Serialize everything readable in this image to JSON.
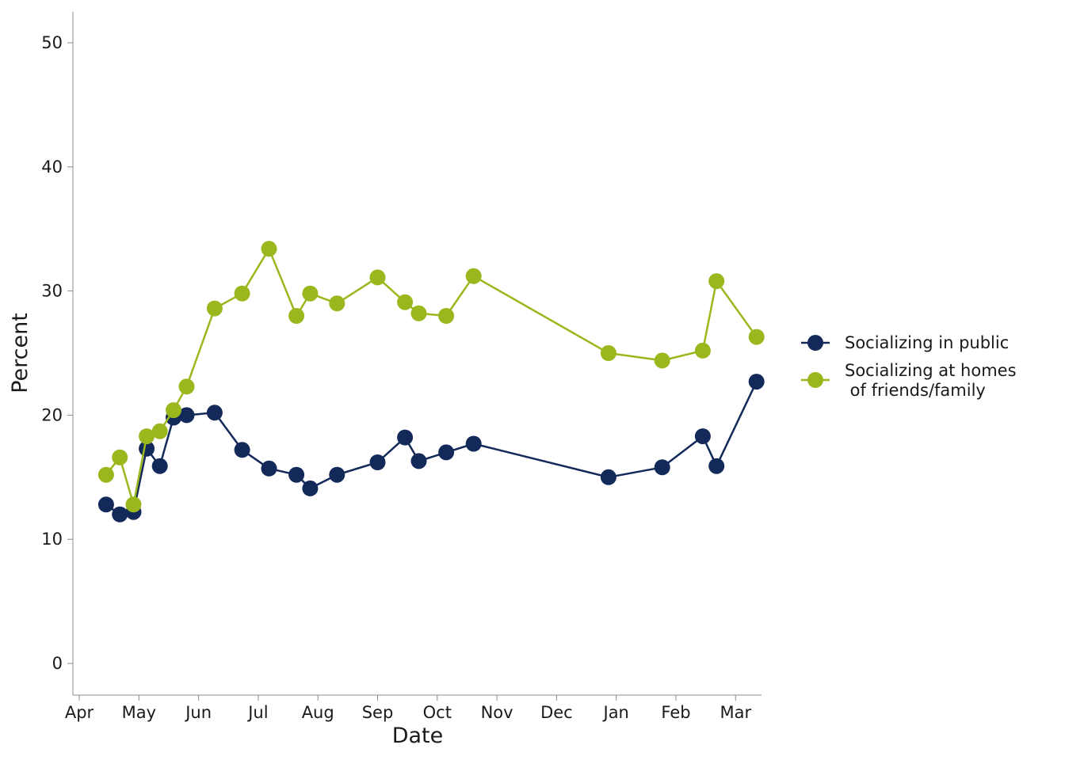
{
  "chart_data": {
    "type": "line",
    "title": "",
    "xlabel": "Date",
    "ylabel": "Percent",
    "ylim": [
      0,
      50
    ],
    "yticks": [
      0,
      10,
      20,
      30,
      40,
      50
    ],
    "xticks": [
      "Apr",
      "May",
      "Jun",
      "Jul",
      "Aug",
      "Sep",
      "Oct",
      "Nov",
      "Dec",
      "Jan",
      "Feb",
      "Mar"
    ],
    "grid": false,
    "legend_position": "right",
    "series": [
      {
        "name": "Socializing in public",
        "color": "#12295a",
        "points": [
          {
            "x": 0.45,
            "y": 12.8
          },
          {
            "x": 0.68,
            "y": 12.0
          },
          {
            "x": 0.91,
            "y": 12.2
          },
          {
            "x": 1.13,
            "y": 17.3
          },
          {
            "x": 1.35,
            "y": 15.9
          },
          {
            "x": 1.58,
            "y": 19.8
          },
          {
            "x": 1.8,
            "y": 20.0
          },
          {
            "x": 2.27,
            "y": 20.2
          },
          {
            "x": 2.73,
            "y": 17.2
          },
          {
            "x": 3.18,
            "y": 15.7
          },
          {
            "x": 3.64,
            "y": 15.2
          },
          {
            "x": 3.87,
            "y": 14.1
          },
          {
            "x": 4.32,
            "y": 15.2
          },
          {
            "x": 5.0,
            "y": 16.2
          },
          {
            "x": 5.46,
            "y": 18.2
          },
          {
            "x": 5.69,
            "y": 16.3
          },
          {
            "x": 6.15,
            "y": 17.0
          },
          {
            "x": 6.61,
            "y": 17.7
          },
          {
            "x": 8.87,
            "y": 15.0
          },
          {
            "x": 9.77,
            "y": 15.8
          },
          {
            "x": 10.45,
            "y": 18.3
          },
          {
            "x": 10.68,
            "y": 15.9
          },
          {
            "x": 11.35,
            "y": 22.7
          }
        ]
      },
      {
        "name": "Socializing at homes\n of friends/family",
        "color": "#9ab81d",
        "points": [
          {
            "x": 0.45,
            "y": 15.2
          },
          {
            "x": 0.68,
            "y": 16.6
          },
          {
            "x": 0.91,
            "y": 12.8
          },
          {
            "x": 1.13,
            "y": 18.3
          },
          {
            "x": 1.35,
            "y": 18.7
          },
          {
            "x": 1.58,
            "y": 20.4
          },
          {
            "x": 1.8,
            "y": 22.3
          },
          {
            "x": 2.27,
            "y": 28.6
          },
          {
            "x": 2.73,
            "y": 29.8
          },
          {
            "x": 3.18,
            "y": 33.4
          },
          {
            "x": 3.64,
            "y": 28.0
          },
          {
            "x": 3.87,
            "y": 29.8
          },
          {
            "x": 4.32,
            "y": 29.0
          },
          {
            "x": 5.0,
            "y": 31.1
          },
          {
            "x": 5.46,
            "y": 29.1
          },
          {
            "x": 5.69,
            "y": 28.2
          },
          {
            "x": 6.15,
            "y": 28.0
          },
          {
            "x": 6.61,
            "y": 31.2
          },
          {
            "x": 8.87,
            "y": 25.0
          },
          {
            "x": 9.77,
            "y": 24.4
          },
          {
            "x": 10.45,
            "y": 25.2
          },
          {
            "x": 10.68,
            "y": 30.8
          },
          {
            "x": 11.35,
            "y": 26.3
          }
        ]
      }
    ]
  }
}
